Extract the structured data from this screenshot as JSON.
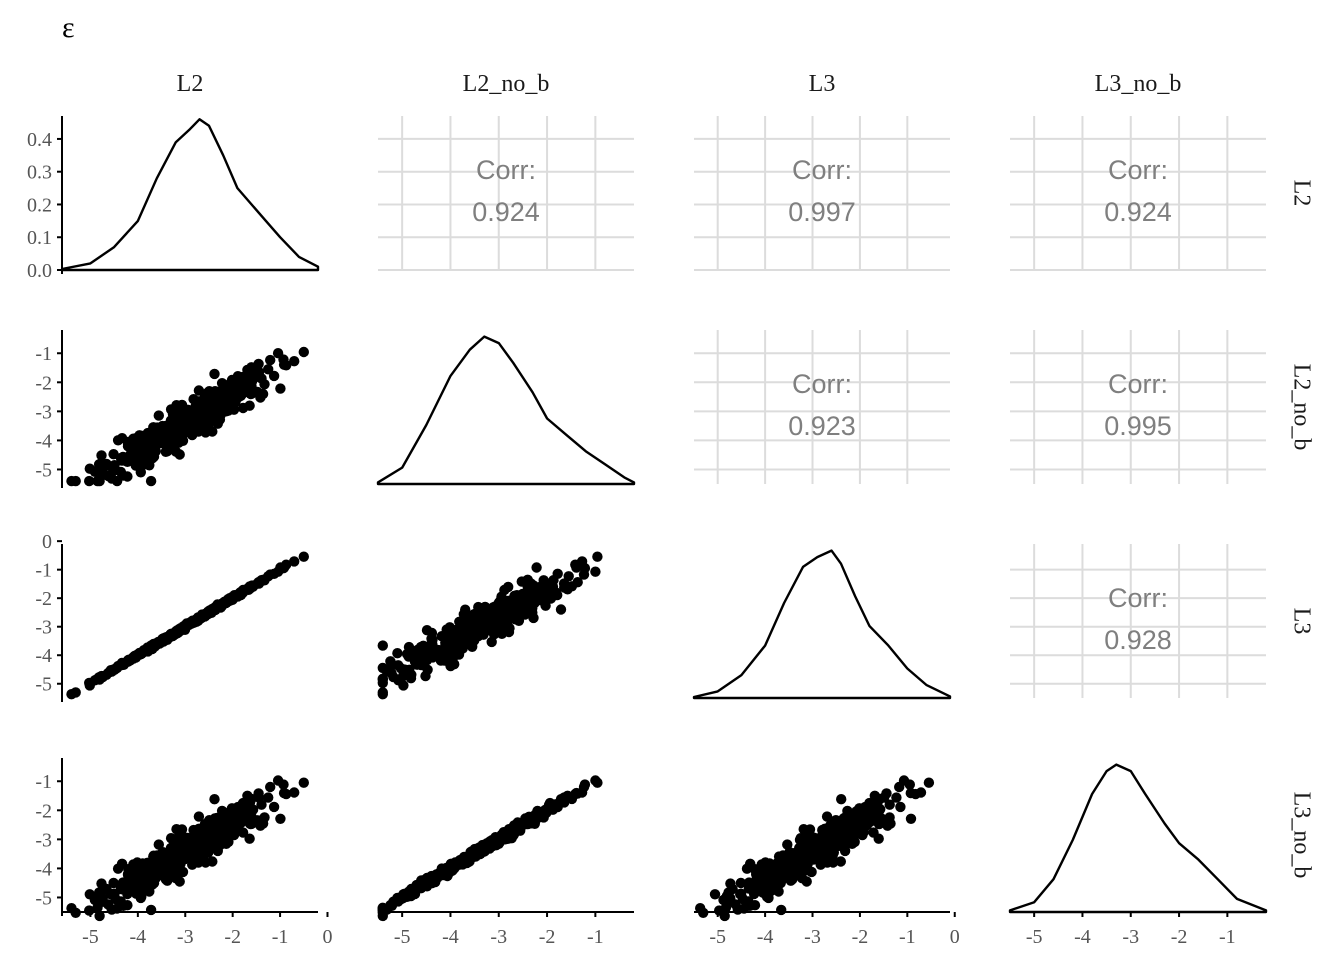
{
  "title": "ε",
  "chart_data": {
    "type": "scatter",
    "title": "ε",
    "variables": [
      "L2",
      "L2_no_b",
      "L3",
      "L3_no_b"
    ],
    "diagonal": "density",
    "upper": "correlation",
    "lower": "scatter",
    "corr_label": "Corr:",
    "correlations": [
      {
        "row": "L2",
        "col": "L2_no_b",
        "value": "0.924"
      },
      {
        "row": "L2",
        "col": "L3",
        "value": "0.997"
      },
      {
        "row": "L2",
        "col": "L3_no_b",
        "value": "0.924"
      },
      {
        "row": "L2_no_b",
        "col": "L3",
        "value": "0.923"
      },
      {
        "row": "L2_no_b",
        "col": "L3_no_b",
        "value": "0.995"
      },
      {
        "row": "L3",
        "col": "L3_no_b",
        "value": "0.928"
      }
    ],
    "ranges": {
      "L2": [
        -5.6,
        -0.2
      ],
      "L2_no_b": [
        -5.5,
        -0.2
      ],
      "L3": [
        -5.5,
        -0.1
      ],
      "L3_no_b": [
        -5.5,
        -0.2
      ]
    },
    "x_ticks": {
      "L2": [
        "-5",
        "-4",
        "-3",
        "-2",
        "-1",
        "0"
      ],
      "L2_no_b": [
        "-5",
        "-4",
        "-3",
        "-2",
        "-1"
      ],
      "L3": [
        "-5",
        "-4",
        "-3",
        "-2",
        "-1",
        "0"
      ],
      "L3_no_b": [
        "-5",
        "-4",
        "-3",
        "-2",
        "-1"
      ]
    },
    "y_ticks": {
      "L2": [
        "0.0",
        "0.1",
        "0.2",
        "0.3",
        "0.4"
      ],
      "L2_no_b": [
        "-5",
        "-4",
        "-3",
        "-2",
        "-1"
      ],
      "L3": [
        "-5",
        "-4",
        "-3",
        "-2",
        "-1",
        "0"
      ],
      "L3_no_b": [
        "-5",
        "-4",
        "-3",
        "-2",
        "-1"
      ]
    },
    "density_ylim": [
      0,
      0.47
    ],
    "densities": {
      "L2": {
        "x": [
          -5.6,
          -5.0,
          -4.5,
          -4.0,
          -3.6,
          -3.2,
          -2.9,
          -2.7,
          -2.5,
          -2.2,
          -1.9,
          -1.6,
          -1.3,
          -1.0,
          -0.6,
          -0.2
        ],
        "y": [
          0.003,
          0.02,
          0.07,
          0.15,
          0.28,
          0.39,
          0.43,
          0.46,
          0.44,
          0.35,
          0.25,
          0.2,
          0.15,
          0.1,
          0.04,
          0.01
        ]
      },
      "L2_no_b": {
        "x": [
          -5.5,
          -5.0,
          -4.5,
          -4.0,
          -3.6,
          -3.3,
          -3.0,
          -2.7,
          -2.3,
          -2.0,
          -1.6,
          -1.2,
          -0.8,
          -0.4,
          -0.2
        ],
        "y": [
          0.005,
          0.05,
          0.18,
          0.33,
          0.41,
          0.45,
          0.43,
          0.37,
          0.28,
          0.2,
          0.15,
          0.1,
          0.06,
          0.02,
          0.005
        ]
      },
      "L3": {
        "x": [
          -5.5,
          -5.0,
          -4.5,
          -4.0,
          -3.6,
          -3.2,
          -2.9,
          -2.6,
          -2.4,
          -2.1,
          -1.8,
          -1.4,
          -1.0,
          -0.6,
          -0.1
        ],
        "y": [
          0.003,
          0.02,
          0.07,
          0.16,
          0.29,
          0.4,
          0.43,
          0.45,
          0.41,
          0.31,
          0.22,
          0.16,
          0.09,
          0.04,
          0.005
        ]
      },
      "L3_no_b": {
        "x": [
          -5.5,
          -5.0,
          -4.6,
          -4.2,
          -3.8,
          -3.5,
          -3.3,
          -3.0,
          -2.7,
          -2.3,
          -2.0,
          -1.6,
          -1.2,
          -0.8,
          -0.2
        ],
        "y": [
          0.005,
          0.03,
          0.1,
          0.22,
          0.36,
          0.43,
          0.45,
          0.43,
          0.36,
          0.27,
          0.21,
          0.16,
          0.1,
          0.04,
          0.005
        ]
      }
    }
  }
}
